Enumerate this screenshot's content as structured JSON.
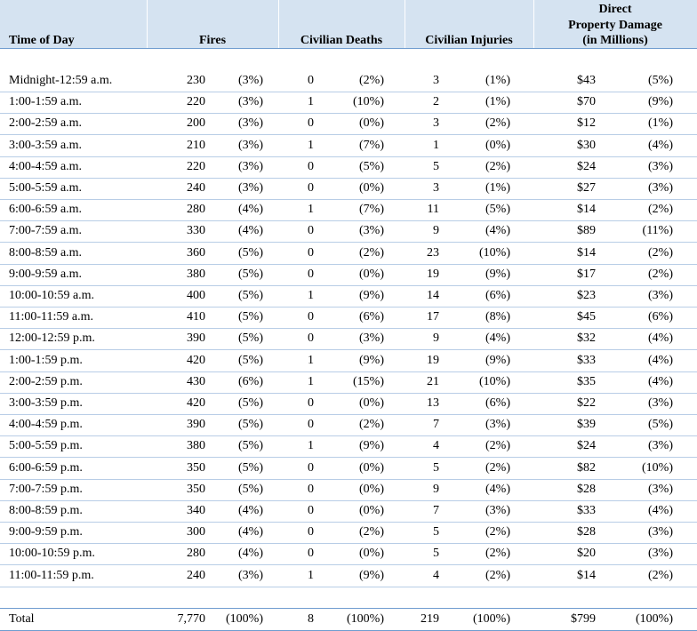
{
  "headers": {
    "time": "Time of Day",
    "fires": "Fires",
    "deaths": "Civilian Deaths",
    "injuries": "Civilian Injuries",
    "damage_line1": "Direct",
    "damage_line2": "Property Damage",
    "damage_line3": "(in Millions)"
  },
  "rows": [
    {
      "time": "Midnight-12:59 a.m.",
      "fires": "230",
      "fires_pct": "(3%)",
      "deaths": "0",
      "deaths_pct": "(2%)",
      "injuries": "3",
      "injuries_pct": "(1%)",
      "damage": "$43",
      "damage_pct": "(5%)"
    },
    {
      "time": "1:00-1:59 a.m.",
      "fires": "220",
      "fires_pct": "(3%)",
      "deaths": "1",
      "deaths_pct": "(10%)",
      "injuries": "2",
      "injuries_pct": "(1%)",
      "damage": "$70",
      "damage_pct": "(9%)"
    },
    {
      "time": "2:00-2:59 a.m.",
      "fires": "200",
      "fires_pct": "(3%)",
      "deaths": "0",
      "deaths_pct": "(0%)",
      "injuries": "3",
      "injuries_pct": "(2%)",
      "damage": "$12",
      "damage_pct": "(1%)"
    },
    {
      "time": "3:00-3:59 a.m.",
      "fires": "210",
      "fires_pct": "(3%)",
      "deaths": "1",
      "deaths_pct": "(7%)",
      "injuries": "1",
      "injuries_pct": "(0%)",
      "damage": "$30",
      "damage_pct": "(4%)"
    },
    {
      "time": "4:00-4:59 a.m.",
      "fires": "220",
      "fires_pct": "(3%)",
      "deaths": "0",
      "deaths_pct": "(5%)",
      "injuries": "5",
      "injuries_pct": "(2%)",
      "damage": "$24",
      "damage_pct": "(3%)"
    },
    {
      "time": "5:00-5:59 a.m.",
      "fires": "240",
      "fires_pct": "(3%)",
      "deaths": "0",
      "deaths_pct": "(0%)",
      "injuries": "3",
      "injuries_pct": "(1%)",
      "damage": "$27",
      "damage_pct": "(3%)"
    },
    {
      "time": "6:00-6:59 a.m.",
      "fires": "280",
      "fires_pct": "(4%)",
      "deaths": "1",
      "deaths_pct": "(7%)",
      "injuries": "11",
      "injuries_pct": "(5%)",
      "damage": "$14",
      "damage_pct": "(2%)"
    },
    {
      "time": "7:00-7:59 a.m.",
      "fires": "330",
      "fires_pct": "(4%)",
      "deaths": "0",
      "deaths_pct": "(3%)",
      "injuries": "9",
      "injuries_pct": "(4%)",
      "damage": "$89",
      "damage_pct": "(11%)"
    },
    {
      "time": "8:00-8:59 a.m.",
      "fires": "360",
      "fires_pct": "(5%)",
      "deaths": "0",
      "deaths_pct": "(2%)",
      "injuries": "23",
      "injuries_pct": "(10%)",
      "damage": "$14",
      "damage_pct": "(2%)"
    },
    {
      "time": "9:00-9:59 a.m.",
      "fires": "380",
      "fires_pct": "(5%)",
      "deaths": "0",
      "deaths_pct": "(0%)",
      "injuries": "19",
      "injuries_pct": "(9%)",
      "damage": "$17",
      "damage_pct": "(2%)"
    },
    {
      "time": "10:00-10:59 a.m.",
      "fires": "400",
      "fires_pct": "(5%)",
      "deaths": "1",
      "deaths_pct": "(9%)",
      "injuries": "14",
      "injuries_pct": "(6%)",
      "damage": "$23",
      "damage_pct": "(3%)"
    },
    {
      "time": "11:00-11:59 a.m.",
      "fires": "410",
      "fires_pct": "(5%)",
      "deaths": "0",
      "deaths_pct": "(6%)",
      "injuries": "17",
      "injuries_pct": "(8%)",
      "damage": "$45",
      "damage_pct": "(6%)"
    },
    {
      "time": "12:00-12:59 p.m.",
      "fires": "390",
      "fires_pct": "(5%)",
      "deaths": "0",
      "deaths_pct": "(3%)",
      "injuries": "9",
      "injuries_pct": "(4%)",
      "damage": "$32",
      "damage_pct": "(4%)"
    },
    {
      "time": "1:00-1:59 p.m.",
      "fires": "420",
      "fires_pct": "(5%)",
      "deaths": "1",
      "deaths_pct": "(9%)",
      "injuries": "19",
      "injuries_pct": "(9%)",
      "damage": "$33",
      "damage_pct": "(4%)"
    },
    {
      "time": "2:00-2:59 p.m.",
      "fires": "430",
      "fires_pct": "(6%)",
      "deaths": "1",
      "deaths_pct": "(15%)",
      "injuries": "21",
      "injuries_pct": "(10%)",
      "damage": "$35",
      "damage_pct": "(4%)"
    },
    {
      "time": "3:00-3:59 p.m.",
      "fires": "420",
      "fires_pct": "(5%)",
      "deaths": "0",
      "deaths_pct": "(0%)",
      "injuries": "13",
      "injuries_pct": "(6%)",
      "damage": "$22",
      "damage_pct": "(3%)"
    },
    {
      "time": "4:00-4:59 p.m.",
      "fires": "390",
      "fires_pct": "(5%)",
      "deaths": "0",
      "deaths_pct": "(2%)",
      "injuries": "7",
      "injuries_pct": "(3%)",
      "damage": "$39",
      "damage_pct": "(5%)"
    },
    {
      "time": "5:00-5:59 p.m.",
      "fires": "380",
      "fires_pct": "(5%)",
      "deaths": "1",
      "deaths_pct": "(9%)",
      "injuries": "4",
      "injuries_pct": "(2%)",
      "damage": "$24",
      "damage_pct": "(3%)"
    },
    {
      "time": "6:00-6:59 p.m.",
      "fires": "350",
      "fires_pct": "(5%)",
      "deaths": "0",
      "deaths_pct": "(0%)",
      "injuries": "5",
      "injuries_pct": "(2%)",
      "damage": "$82",
      "damage_pct": "(10%)"
    },
    {
      "time": "7:00-7:59 p.m.",
      "fires": "350",
      "fires_pct": "(5%)",
      "deaths": "0",
      "deaths_pct": "(0%)",
      "injuries": "9",
      "injuries_pct": "(4%)",
      "damage": "$28",
      "damage_pct": "(3%)"
    },
    {
      "time": "8:00-8:59 p.m.",
      "fires": "340",
      "fires_pct": "(4%)",
      "deaths": "0",
      "deaths_pct": "(0%)",
      "injuries": "7",
      "injuries_pct": "(3%)",
      "damage": "$33",
      "damage_pct": "(4%)"
    },
    {
      "time": "9:00-9:59 p.m.",
      "fires": "300",
      "fires_pct": "(4%)",
      "deaths": "0",
      "deaths_pct": "(2%)",
      "injuries": "5",
      "injuries_pct": "(2%)",
      "damage": "$28",
      "damage_pct": "(3%)"
    },
    {
      "time": "10:00-10:59 p.m.",
      "fires": "280",
      "fires_pct": "(4%)",
      "deaths": "0",
      "deaths_pct": "(0%)",
      "injuries": "5",
      "injuries_pct": "(2%)",
      "damage": "$20",
      "damage_pct": "(3%)"
    },
    {
      "time": "11:00-11:59 p.m.",
      "fires": "240",
      "fires_pct": "(3%)",
      "deaths": "1",
      "deaths_pct": "(9%)",
      "injuries": "4",
      "injuries_pct": "(2%)",
      "damage": "$14",
      "damage_pct": "(2%)"
    }
  ],
  "total": {
    "time": "Total",
    "fires": "7,770",
    "fires_pct": "(100%)",
    "deaths": "8",
    "deaths_pct": "(100%)",
    "injuries": "219",
    "injuries_pct": "(100%)",
    "damage": "$799",
    "damage_pct": "(100%)"
  },
  "colors": {
    "header_bg": "#d5e3f1",
    "rule": "#6f9ccf",
    "row_sep": "#b8cde6"
  }
}
